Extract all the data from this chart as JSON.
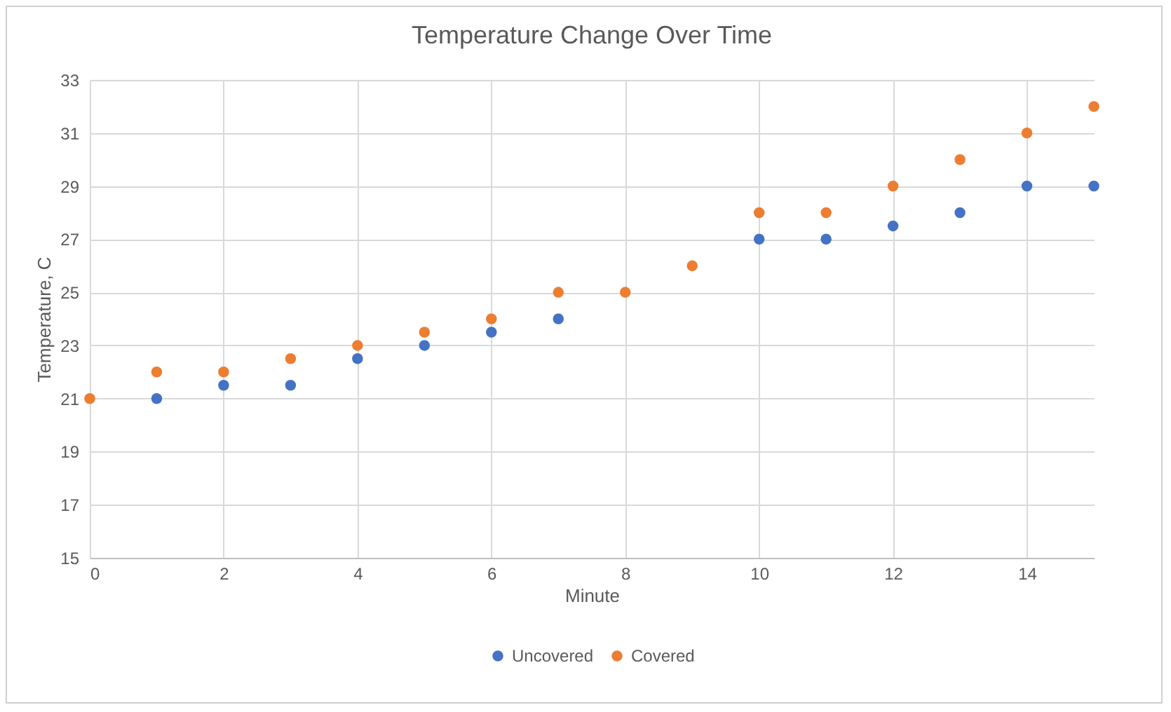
{
  "chart_data": {
    "type": "scatter",
    "title": "Temperature  Change Over Time",
    "xlabel": "Minute",
    "ylabel": "Temperature, C",
    "x": [
      0,
      1,
      2,
      3,
      4,
      5,
      6,
      7,
      8,
      9,
      10,
      11,
      12,
      13,
      14,
      15
    ],
    "series": [
      {
        "name": "Uncovered",
        "color": "#4472c4",
        "values": [
          null,
          21,
          21.5,
          21.5,
          22.5,
          23,
          23.5,
          24,
          null,
          null,
          27,
          27,
          27.5,
          28,
          29,
          29
        ]
      },
      {
        "name": "Covered",
        "color": "#ed7d31",
        "values": [
          21,
          22,
          22,
          22.5,
          23,
          23.5,
          24,
          25,
          25,
          26,
          28,
          28,
          29,
          30,
          31,
          32
        ]
      }
    ],
    "xlim": [
      0,
      15
    ],
    "xticks": [
      0,
      2,
      4,
      6,
      8,
      10,
      12,
      14
    ],
    "ylim": [
      15,
      33
    ],
    "yticks": [
      15,
      17,
      19,
      21,
      23,
      25,
      27,
      29,
      31,
      33
    ],
    "grid": true,
    "legend": "bottom",
    "marker": "circle"
  }
}
